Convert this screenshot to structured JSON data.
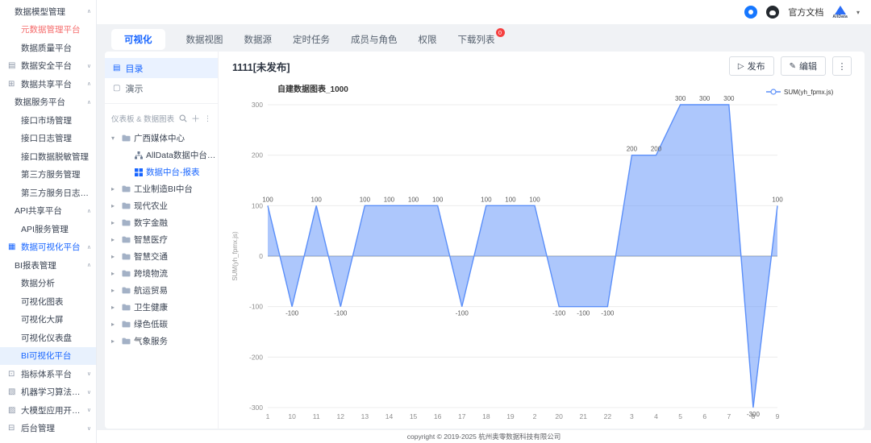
{
  "header": {
    "doc_link": "官方文档",
    "brand": "AllData"
  },
  "tabs": {
    "items": [
      {
        "label": "可视化",
        "active": true
      },
      {
        "label": "数据视图"
      },
      {
        "label": "数据源"
      },
      {
        "label": "定时任务"
      },
      {
        "label": "成员与角色"
      },
      {
        "label": "权限"
      },
      {
        "label": "下载列表",
        "badge": "0"
      }
    ]
  },
  "sidebar": {
    "items": [
      {
        "label": "数据模型管理",
        "indent": 1,
        "chevron": "up"
      },
      {
        "label": "元数据管理平台",
        "indent": 2,
        "state": "warn"
      },
      {
        "label": "数据质量平台",
        "indent": 2
      },
      {
        "label": "数据安全平台",
        "indent": 0,
        "icon": "security-icon",
        "glyph": "▤",
        "chevron": "down"
      },
      {
        "label": "数据共享平台",
        "indent": 0,
        "icon": "share-icon",
        "glyph": "⊞",
        "chevron": "up"
      },
      {
        "label": "数据服务平台",
        "indent": 1,
        "chevron": "up"
      },
      {
        "label": "接口市场管理",
        "indent": 2
      },
      {
        "label": "接口日志管理",
        "indent": 2
      },
      {
        "label": "接口数据脱敏管理",
        "indent": 2
      },
      {
        "label": "第三方服务管理",
        "indent": 2
      },
      {
        "label": "第三方服务日志管理",
        "indent": 2
      },
      {
        "label": "API共享平台",
        "indent": 1,
        "chevron": "up"
      },
      {
        "label": "API服务管理",
        "indent": 2
      },
      {
        "label": "数据可视化平台",
        "indent": 0,
        "icon": "visualization-icon",
        "glyph": "▦",
        "chevron": "up",
        "state": "blue"
      },
      {
        "label": "BI报表管理",
        "indent": 1,
        "chevron": "up"
      },
      {
        "label": "数据分析",
        "indent": 2
      },
      {
        "label": "可视化图表",
        "indent": 2
      },
      {
        "label": "可视化大屏",
        "indent": 2
      },
      {
        "label": "可视化仪表盘",
        "indent": 2
      },
      {
        "label": "BI可视化平台",
        "indent": 2,
        "state": "selected"
      },
      {
        "label": "指标体系平台",
        "indent": 0,
        "icon": "metrics-icon",
        "glyph": "⊡",
        "chevron": "down"
      },
      {
        "label": "机器学习算法平台",
        "indent": 0,
        "icon": "ml-icon",
        "glyph": "▧",
        "chevron": "down"
      },
      {
        "label": "大模型应用开发平台",
        "indent": 0,
        "icon": "llm-icon",
        "glyph": "▨",
        "chevron": "down"
      },
      {
        "label": "后台管理",
        "indent": 0,
        "icon": "admin-icon",
        "glyph": "⊟",
        "chevron": "down"
      }
    ]
  },
  "explorer": {
    "nav": [
      {
        "label": "目录",
        "glyph": "▤",
        "active": true
      },
      {
        "label": "演示",
        "glyph": "▢"
      }
    ],
    "section_title": "仪表板 & 数据图表",
    "tree": [
      {
        "label": "广西媒体中心",
        "type": "folder",
        "caret": "open",
        "indent": 0
      },
      {
        "label": "AllData数据中台-数据图...",
        "type": "chart",
        "indent": 1
      },
      {
        "label": "数据中台-报表",
        "type": "report",
        "indent": 1,
        "selected": true
      },
      {
        "label": "工业制造BI中台",
        "type": "folder",
        "caret": "closed",
        "indent": 0
      },
      {
        "label": "现代农业",
        "type": "folder",
        "caret": "closed",
        "indent": 0
      },
      {
        "label": "数字金融",
        "type": "folder",
        "caret": "closed",
        "indent": 0
      },
      {
        "label": "智慧医疗",
        "type": "folder",
        "caret": "closed",
        "indent": 0
      },
      {
        "label": "智慧交通",
        "type": "folder",
        "caret": "closed",
        "indent": 0
      },
      {
        "label": "跨境物流",
        "type": "folder",
        "caret": "closed",
        "indent": 0
      },
      {
        "label": "航运贸易",
        "type": "folder",
        "caret": "closed",
        "indent": 0
      },
      {
        "label": "卫生健康",
        "type": "folder",
        "caret": "closed",
        "indent": 0
      },
      {
        "label": "绿色低碳",
        "type": "folder",
        "caret": "closed",
        "indent": 0
      },
      {
        "label": "气象服务",
        "type": "folder",
        "caret": "closed",
        "indent": 0
      }
    ]
  },
  "content": {
    "title": "1111[未发布]",
    "publish_label": "发布",
    "edit_label": "编辑"
  },
  "footer": {
    "copyright": "copyright © 2019-2025 杭州奥零数据科技有限公司"
  },
  "colors": {
    "accent": "#1664ff",
    "chart_line": "#5b8ff9",
    "warn": "#f56c6c",
    "badge": "#f53f3f"
  },
  "chart_data": {
    "type": "area",
    "title": "自建数据图表_1000",
    "legend": [
      {
        "name": "SUM(yh_fpmx.js)",
        "color": "#5b8ff9"
      }
    ],
    "legend_position": "top-right",
    "ylabel": "SUM(yh_fpmx.js)",
    "categories": [
      "1",
      "10",
      "11",
      "12",
      "13",
      "14",
      "15",
      "16",
      "17",
      "18",
      "19",
      "2",
      "20",
      "21",
      "22",
      "3",
      "4",
      "5",
      "6",
      "7",
      "8",
      "9"
    ],
    "values": [
      100,
      -100,
      100,
      -100,
      100,
      100,
      100,
      100,
      -100,
      100,
      100,
      100,
      -100,
      -100,
      -100,
      200,
      200,
      300,
      300,
      300,
      -300,
      100
    ],
    "ylim": [
      -300,
      300
    ],
    "yticks": [
      -300,
      -200,
      -100,
      0,
      100,
      200,
      300
    ],
    "grid": true
  }
}
